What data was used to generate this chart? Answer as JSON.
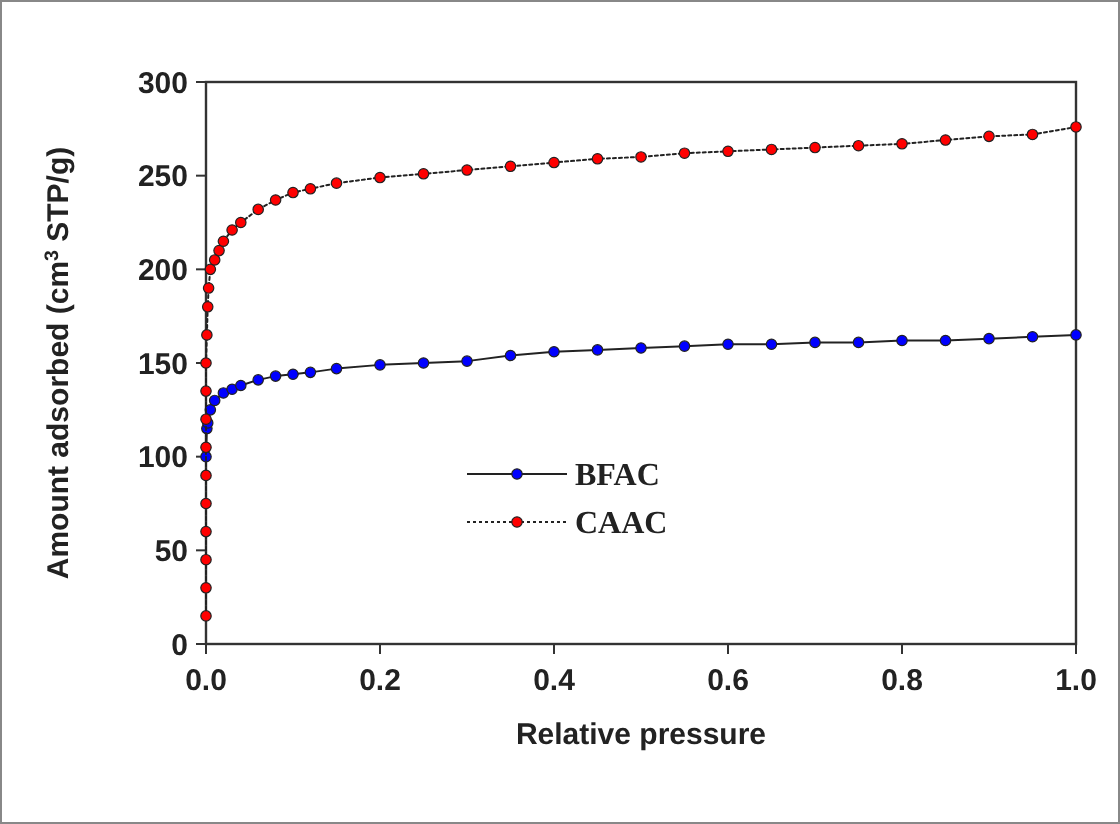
{
  "chart_data": {
    "type": "line",
    "xlabel": "Relative pressure",
    "ylabel": "Amount adsorbed (cm$^{3}$ STP/g)",
    "xlim": [
      0,
      1
    ],
    "xticks": [
      {
        "value": 0,
        "label": "0.0"
      },
      {
        "value": 0.2,
        "label": "0.2"
      },
      {
        "value": 0.4,
        "label": "0.4"
      },
      {
        "value": 0.6,
        "label": "0.6"
      },
      {
        "value": 0.8,
        "label": "0.8"
      },
      {
        "value": 1,
        "label": "1.0"
      }
    ],
    "ylim": [
      0,
      300
    ],
    "yticks": [
      0,
      50,
      100,
      150,
      200,
      250,
      300
    ],
    "legend": "bottom",
    "marker": "circle",
    "grid": false,
    "series": [
      {
        "name": "BFAC",
        "color": "#0000ff",
        "line_style": "solid",
        "x": [
          0,
          0.001,
          0.002,
          0.005,
          0.01,
          0.02,
          0.03,
          0.04,
          0.06,
          0.08,
          0.1,
          0.12,
          0.15,
          0.2,
          0.25,
          0.3,
          0.35,
          0.4,
          0.45,
          0.5,
          0.55,
          0.6,
          0.65,
          0.7,
          0.75,
          0.8,
          0.85,
          0.9,
          0.95,
          1.0
        ],
        "values": [
          100,
          115,
          118,
          125,
          130,
          134,
          136,
          138,
          141,
          143,
          144,
          145,
          147,
          149,
          150,
          151,
          154,
          156,
          157,
          158,
          159,
          160,
          160,
          161,
          161,
          162,
          162,
          163,
          164,
          165
        ]
      },
      {
        "name": "CAAC",
        "color": "#ff0000",
        "line_style": "dotted",
        "x": [
          0,
          0,
          0,
          0,
          0,
          0,
          0,
          0,
          0,
          0,
          0.001,
          0.002,
          0.003,
          0.005,
          0.01,
          0.015,
          0.02,
          0.03,
          0.04,
          0.06,
          0.08,
          0.1,
          0.12,
          0.15,
          0.2,
          0.25,
          0.3,
          0.35,
          0.4,
          0.45,
          0.5,
          0.55,
          0.6,
          0.65,
          0.7,
          0.75,
          0.8,
          0.85,
          0.9,
          0.95,
          1.0
        ],
        "values": [
          15,
          30,
          45,
          60,
          75,
          90,
          105,
          120,
          135,
          150,
          165,
          180,
          190,
          200,
          205,
          210,
          215,
          221,
          225,
          232,
          237,
          241,
          243,
          246,
          249,
          251,
          253,
          255,
          257,
          259,
          260,
          262,
          263,
          264,
          265,
          266,
          267,
          269,
          271,
          272,
          276
        ]
      }
    ]
  }
}
